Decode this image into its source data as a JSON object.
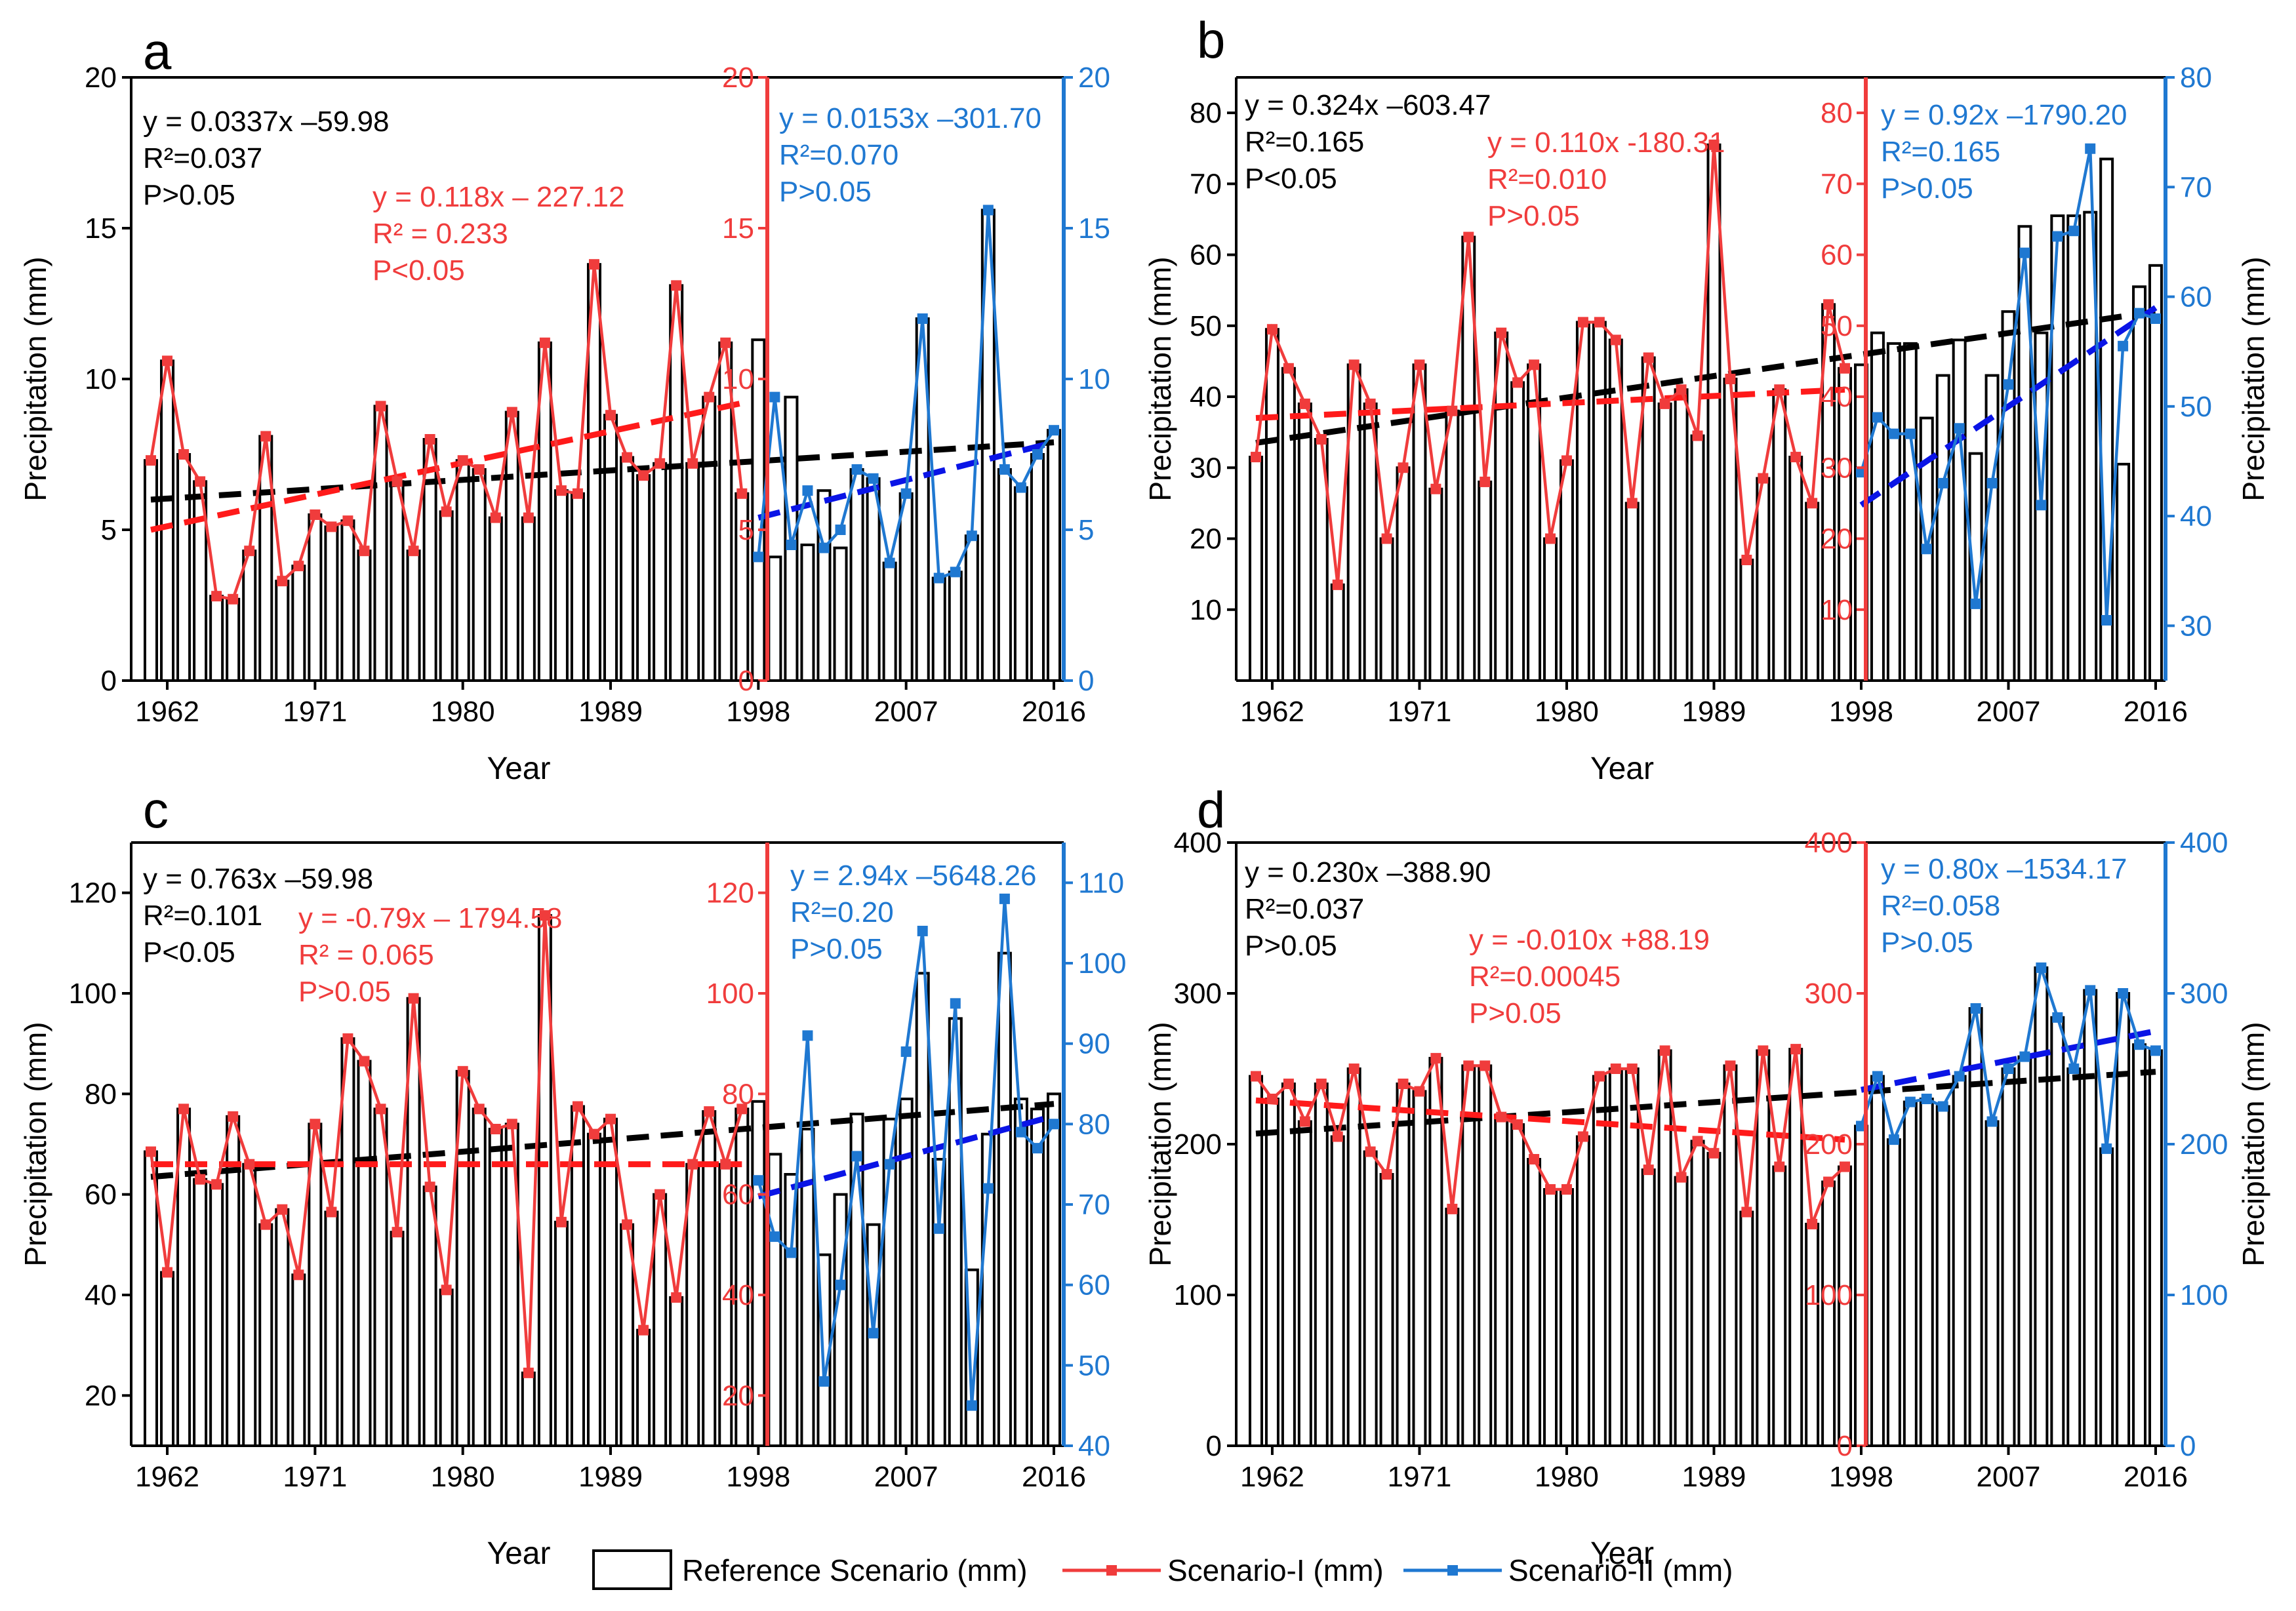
{
  "colors": {
    "reference": "#000000",
    "s1": "#f03c3c",
    "s2": "#1f78d1",
    "trend_ref": "#000000",
    "trend_s1": "#ff1a1a",
    "trend_s2": "#0a14e6"
  },
  "figure": {
    "x_label": "Year",
    "y_label_left": "Precipitation (mm)",
    "y_label_right": "Precipitation (mm)",
    "legend": [
      {
        "key": "reference",
        "label": "Reference Scenario (mm)"
      },
      {
        "key": "s1",
        "label": "Scenario-I (mm)"
      },
      {
        "key": "s2",
        "label": "Scenario-II (mm)"
      }
    ]
  },
  "chart_data": [
    {
      "type": "bar",
      "panel": "a",
      "x_ticks": [
        "1962",
        "1971",
        "1980",
        "1989",
        "1998",
        "2007",
        "2016"
      ],
      "years": [
        1961,
        2016
      ],
      "ylim": [
        0,
        20
      ],
      "y_ticks": [
        "0",
        "5",
        "10",
        "15",
        "20"
      ],
      "s1_axis": {
        "ylim": [
          0,
          20
        ],
        "ticks": [
          "0",
          "5",
          "10",
          "15",
          "20"
        ]
      },
      "s2_axis": {
        "ylim": [
          0,
          20
        ],
        "ticks": [
          "0",
          "5",
          "10",
          "15",
          "20"
        ]
      },
      "reference_values": [
        7.3,
        10.6,
        7.5,
        6.6,
        2.8,
        2.7,
        4.3,
        8.1,
        3.3,
        3.8,
        5.5,
        5.1,
        5.3,
        4.3,
        9.1,
        6.6,
        4.3,
        8.0,
        5.6,
        7.3,
        7.0,
        5.4,
        8.9,
        5.4,
        11.2,
        6.3,
        6.2,
        13.8,
        8.8,
        7.4,
        6.8,
        7.2,
        13.1,
        7.2,
        9.4,
        11.2,
        6.2,
        11.3,
        4.1,
        9.4,
        4.5,
        6.3,
        4.4,
        7.0,
        6.7,
        3.9,
        6.2,
        12.0,
        3.4,
        3.6,
        4.8,
        15.6,
        7.0,
        6.4,
        7.5,
        8.3
      ],
      "s1": {
        "start": 1961,
        "values": [
          7.3,
          10.6,
          7.5,
          6.6,
          2.8,
          2.7,
          4.3,
          8.1,
          3.3,
          3.8,
          5.5,
          5.1,
          5.3,
          4.3,
          9.1,
          6.6,
          4.3,
          8.0,
          5.6,
          7.3,
          7.0,
          5.4,
          8.9,
          5.4,
          11.2,
          6.3,
          6.2,
          13.8,
          8.8,
          7.4,
          6.8,
          7.2,
          13.1,
          7.2,
          9.4,
          11.2,
          6.2
        ]
      },
      "s2": {
        "start": 1998,
        "values": [
          4.1,
          9.4,
          4.5,
          6.3,
          4.4,
          5.0,
          7.0,
          6.7,
          3.9,
          6.2,
          12.0,
          3.4,
          3.6,
          4.8,
          15.6,
          7.0,
          6.4,
          7.5,
          8.3
        ]
      },
      "trends": {
        "ref": {
          "x": [
            1961,
            2016
          ],
          "y": [
            6.0,
            7.9
          ]
        },
        "s1": {
          "x": [
            1961,
            1997
          ],
          "y": [
            5.0,
            9.2
          ]
        },
        "s2": {
          "x": [
            1998,
            2016
          ],
          "y": [
            5.4,
            7.9
          ]
        }
      },
      "annotations": [
        {
          "series": "ref",
          "lines": [
            "y = 0.0337x –59.98",
            "R²=0.037",
            "P>0.05"
          ]
        },
        {
          "series": "s1",
          "lines": [
            "y = 0.118x – 227.12",
            "R² = 0.233",
            "P<0.05"
          ]
        },
        {
          "series": "s2",
          "lines": [
            "y = 0.0153x –301.70",
            "R²=0.070",
            "P>0.05"
          ]
        }
      ]
    },
    {
      "type": "bar",
      "panel": "b",
      "x_ticks": [
        "1962",
        "1971",
        "1980",
        "1989",
        "1998",
        "2007",
        "2016"
      ],
      "years": [
        1961,
        2016
      ],
      "ylim": [
        0,
        85
      ],
      "y_ticks": [
        "10",
        "20",
        "30",
        "40",
        "50",
        "60",
        "70",
        "80"
      ],
      "s1_axis": {
        "ylim": [
          0,
          85
        ],
        "ticks": [
          "10",
          "20",
          "30",
          "40",
          "50",
          "60",
          "70",
          "80"
        ]
      },
      "s2_axis": {
        "ylim": [
          25,
          80
        ],
        "ticks": [
          "30",
          "40",
          "50",
          "60",
          "70",
          "80"
        ]
      },
      "reference_values": [
        31.5,
        49.5,
        44.0,
        39.0,
        34.0,
        13.5,
        44.5,
        39.0,
        20.0,
        30.0,
        44.5,
        27.0,
        38.0,
        62.5,
        28.0,
        49.0,
        42.0,
        44.5,
        20.0,
        31.0,
        50.5,
        50.5,
        48.0,
        25.0,
        45.5,
        39.0,
        41.0,
        34.5,
        75.5,
        42.5,
        17.0,
        28.5,
        41.0,
        31.5,
        25.0,
        53.0,
        44.0,
        44.5,
        49.0,
        47.5,
        47.5,
        37.0,
        43.0,
        48.0,
        32.0,
        43.0,
        52.0,
        64.0,
        49.0,
        65.5,
        65.5,
        66.0,
        73.5,
        30.5,
        55.5,
        58.5
      ],
      "s1": {
        "start": 1961,
        "values": [
          31.5,
          49.5,
          44.0,
          39.0,
          34.0,
          13.5,
          44.5,
          39.0,
          20.0,
          30.0,
          44.5,
          27.0,
          38.0,
          62.5,
          28.0,
          49.0,
          42.0,
          44.5,
          20.0,
          31.0,
          50.5,
          50.5,
          48.0,
          25.0,
          45.5,
          39.0,
          41.0,
          34.5,
          75.5,
          42.5,
          17.0,
          28.5,
          41.0,
          31.5,
          25.0,
          53.0,
          44.0
        ]
      },
      "s2": {
        "start": 1998,
        "values": [
          44.0,
          49.0,
          47.5,
          47.5,
          37.0,
          43.0,
          48.0,
          32.0,
          43.0,
          52.0,
          64.0,
          41.0,
          65.5,
          66.0,
          73.5,
          30.5,
          55.5,
          58.5,
          58.0
        ]
      },
      "trends": {
        "ref": {
          "x": [
            1961,
            2016
          ],
          "y": [
            33.5,
            52.0
          ]
        },
        "s1": {
          "x": [
            1961,
            1997
          ],
          "y": [
            37.0,
            41.0
          ]
        },
        "s2": {
          "x": [
            1998,
            2016
          ],
          "y": [
            41.0,
            59.0
          ]
        }
      },
      "annotations": [
        {
          "series": "ref",
          "lines": [
            "y = 0.324x –603.47",
            "R²=0.165",
            "P<0.05"
          ]
        },
        {
          "series": "s1",
          "lines": [
            "y = 0.110x -180.31",
            "R²=0.010",
            "P>0.05"
          ]
        },
        {
          "series": "s2",
          "lines": [
            "y = 0.92x –1790.20",
            "R²=0.165",
            "P>0.05"
          ]
        }
      ]
    },
    {
      "type": "bar",
      "panel": "c",
      "x_ticks": [
        "1962",
        "1971",
        "1980",
        "1989",
        "1998",
        "2007",
        "2016"
      ],
      "years": [
        1961,
        2016
      ],
      "ylim": [
        10,
        130
      ],
      "y_ticks": [
        "20",
        "40",
        "60",
        "80",
        "100",
        "120"
      ],
      "s1_axis": {
        "ylim": [
          10,
          130
        ],
        "ticks": [
          "20",
          "40",
          "60",
          "80",
          "100",
          "120"
        ]
      },
      "s2_axis": {
        "ylim": [
          40,
          115
        ],
        "ticks": [
          "40",
          "50",
          "60",
          "70",
          "80",
          "90",
          "100",
          "110"
        ]
      },
      "reference_values": [
        68.5,
        44.5,
        77.0,
        63.0,
        62.0,
        75.5,
        66.0,
        54.0,
        57.0,
        44.0,
        74.0,
        56.5,
        91.0,
        86.5,
        77.0,
        52.5,
        99.0,
        61.5,
        41.0,
        84.5,
        77.0,
        73.0,
        74.0,
        24.5,
        115.5,
        54.5,
        77.5,
        72.0,
        75.0,
        54.0,
        33.0,
        60.0,
        39.5,
        66.0,
        76.5,
        66.0,
        77.0,
        78.5,
        68.0,
        64.0,
        73.0,
        48.0,
        60.0,
        76.0,
        54.0,
        75.0,
        79.0,
        104.0,
        67.0,
        95.0,
        45.0,
        72.0,
        108.0,
        79.0,
        77.0,
        80.0
      ],
      "s1": {
        "start": 1961,
        "values": [
          68.5,
          44.5,
          77.0,
          63.0,
          62.0,
          75.5,
          66.0,
          54.0,
          57.0,
          44.0,
          74.0,
          56.5,
          91.0,
          86.5,
          77.0,
          52.5,
          99.0,
          61.5,
          41.0,
          84.5,
          77.0,
          73.0,
          74.0,
          24.5,
          115.5,
          54.5,
          77.5,
          72.0,
          75.0,
          54.0,
          33.0,
          60.0,
          39.5,
          66.0,
          76.5,
          66.0,
          77.0
        ]
      },
      "s2": {
        "start": 1998,
        "values": [
          73.0,
          66.0,
          64.0,
          91.0,
          48.0,
          60.0,
          76.0,
          54.0,
          75.0,
          89.0,
          104.0,
          67.0,
          95.0,
          45.0,
          72.0,
          108.0,
          79.0,
          77.0,
          80.0
        ]
      },
      "trends": {
        "ref": {
          "x": [
            1961,
            2016
          ],
          "y": [
            63.5,
            78.0
          ]
        },
        "s1": {
          "x": [
            1961,
            1997
          ],
          "y": [
            66.0,
            66.0
          ]
        },
        "s2": {
          "x": [
            1998,
            2016
          ],
          "y": [
            71.0,
            81.0
          ]
        }
      },
      "annotations": [
        {
          "series": "ref",
          "lines": [
            "y = 0.763x –59.98",
            "R²=0.101",
            "P<0.05"
          ]
        },
        {
          "series": "s1",
          "lines": [
            "y = -0.79x – 1794.58",
            "R² = 0.065",
            "P>0.05"
          ]
        },
        {
          "series": "s2",
          "lines": [
            "y = 2.94x –5648.26",
            "R²=0.20",
            "P>0.05"
          ]
        }
      ]
    },
    {
      "type": "bar",
      "panel": "d",
      "x_ticks": [
        "1962",
        "1971",
        "1980",
        "1989",
        "1998",
        "2007",
        "2016"
      ],
      "years": [
        1961,
        2016
      ],
      "ylim": [
        0,
        400
      ],
      "y_ticks": [
        "0",
        "100",
        "200",
        "300",
        "400"
      ],
      "s1_axis": {
        "ylim": [
          0,
          400
        ],
        "ticks": [
          "0",
          "100",
          "200",
          "300",
          "400"
        ]
      },
      "s2_axis": {
        "ylim": [
          0,
          400
        ],
        "ticks": [
          "0",
          "100",
          "200",
          "300",
          "400"
        ]
      },
      "reference_values": [
        245,
        230,
        240,
        215,
        240,
        205,
        250,
        195,
        180,
        240,
        235,
        257,
        157,
        252,
        252,
        218,
        213,
        190,
        170,
        170,
        205,
        245,
        250,
        250,
        183,
        262,
        178,
        202,
        194,
        252,
        155,
        262,
        185,
        263,
        147,
        175,
        185,
        212,
        245,
        203,
        228,
        230,
        225,
        245,
        290,
        215,
        250,
        258,
        317,
        284,
        250,
        302,
        197,
        300,
        266,
        262
      ],
      "s1": {
        "start": 1961,
        "values": [
          245,
          230,
          240,
          215,
          240,
          205,
          250,
          195,
          180,
          240,
          235,
          257,
          157,
          252,
          252,
          218,
          213,
          190,
          170,
          170,
          205,
          245,
          250,
          250,
          183,
          262,
          178,
          202,
          194,
          252,
          155,
          262,
          185,
          263,
          147,
          175,
          185
        ]
      },
      "s2": {
        "start": 1998,
        "values": [
          212,
          245,
          203,
          228,
          230,
          225,
          245,
          290,
          215,
          250,
          258,
          317,
          284,
          250,
          302,
          197,
          300,
          266,
          262
        ]
      },
      "trends": {
        "ref": {
          "x": [
            1961,
            2016
          ],
          "y": [
            207,
            248
          ]
        },
        "s1": {
          "x": [
            1961,
            1997
          ],
          "y": [
            229,
            203
          ]
        },
        "s2": {
          "x": [
            1998,
            2016
          ],
          "y": [
            236,
            275
          ]
        }
      },
      "annotations": [
        {
          "series": "ref",
          "lines": [
            "y = 0.230x –388.90",
            "R²=0.037",
            "P>0.05"
          ]
        },
        {
          "series": "s1",
          "lines": [
            "y = -0.010x +88.19",
            "R²=0.00045",
            "P>0.05"
          ]
        },
        {
          "series": "s2",
          "lines": [
            "y = 0.80x –1534.17",
            "R²=0.058",
            "P>0.05"
          ]
        }
      ]
    }
  ]
}
